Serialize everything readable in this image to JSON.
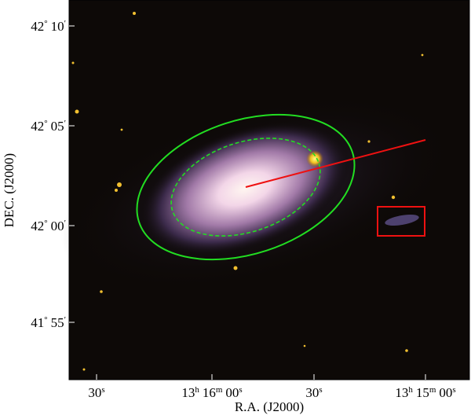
{
  "x_axis": {
    "label": "R.A. (J2000)",
    "ticks": [
      [
        [
          "30",
          "s"
        ]
      ],
      [
        [
          "13",
          "h"
        ],
        [
          "16",
          "m"
        ],
        [
          "00",
          "s"
        ]
      ],
      [
        [
          "30",
          "s"
        ]
      ],
      [
        [
          "13",
          "h"
        ],
        [
          "15",
          "m"
        ],
        [
          "00",
          "s"
        ]
      ]
    ]
  },
  "y_axis": {
    "label": "DEC. (J2000)",
    "ticks": [
      [
        [
          "42",
          "°"
        ],
        [
          "10",
          "′"
        ]
      ],
      [
        [
          "42",
          "°"
        ],
        [
          "05",
          "′"
        ]
      ],
      [
        [
          "42",
          "°"
        ],
        [
          "00",
          "′"
        ]
      ],
      [
        [
          "41",
          "°"
        ],
        [
          "55",
          "′"
        ]
      ]
    ]
  }
}
